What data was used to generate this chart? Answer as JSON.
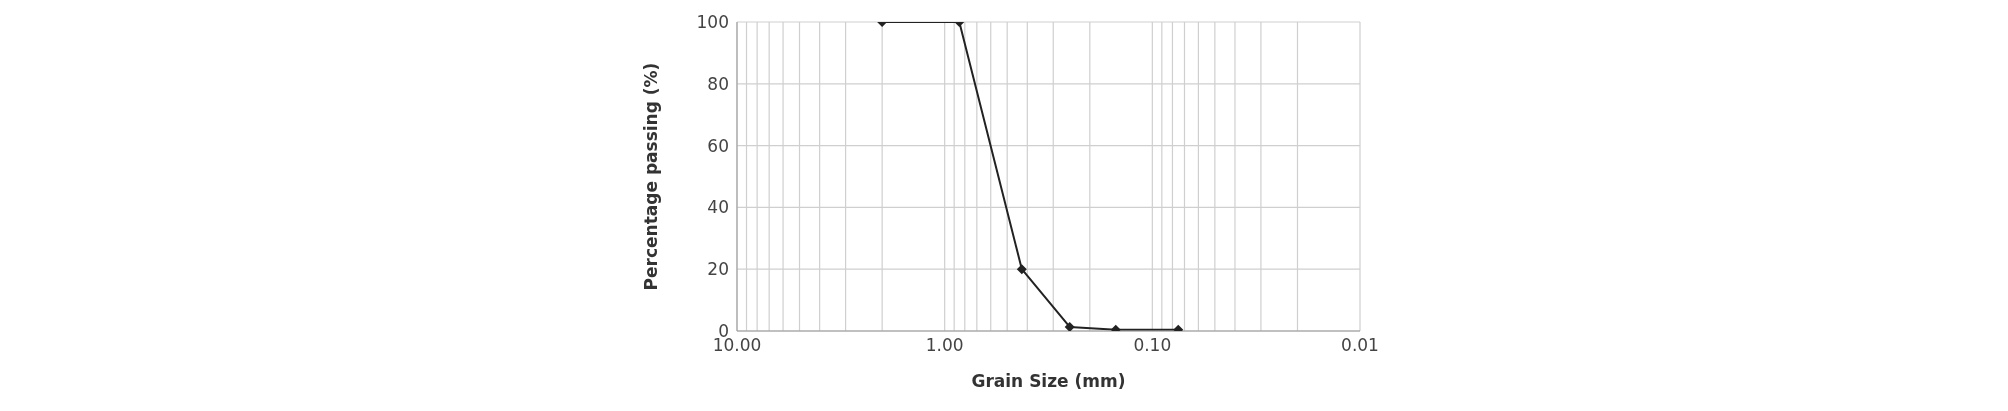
{
  "chart_data": {
    "type": "line",
    "xlabel": "Grain Size (mm)",
    "ylabel": "Percentage passing (%)",
    "x": [
      2.0,
      0.85,
      0.425,
      0.25,
      0.15,
      0.075
    ],
    "series": [
      {
        "color": "#222222",
        "values": [
          100,
          100,
          20,
          1.3,
          0.4,
          0.4
        ]
      }
    ],
    "log": "x",
    "xlim": [
      10,
      0.01
    ],
    "xticks": [
      {
        "value": 10,
        "label": "10.00"
      },
      {
        "value": 9,
        "label": null
      },
      {
        "value": 8,
        "label": null
      },
      {
        "value": 7,
        "label": null
      },
      {
        "value": 6,
        "label": null
      },
      {
        "value": 5,
        "label": null
      },
      {
        "value": 4,
        "label": null
      },
      {
        "value": 3,
        "label": null
      },
      {
        "value": 2,
        "label": null
      },
      {
        "value": 1,
        "label": "1.00"
      },
      {
        "value": 0.9,
        "label": null
      },
      {
        "value": 0.8,
        "label": null
      },
      {
        "value": 0.7,
        "label": null
      },
      {
        "value": 0.6,
        "label": null
      },
      {
        "value": 0.5,
        "label": null
      },
      {
        "value": 0.4,
        "label": null
      },
      {
        "value": 0.3,
        "label": null
      },
      {
        "value": 0.2,
        "label": null
      },
      {
        "value": 0.1,
        "label": "0.10"
      },
      {
        "value": 0.09,
        "label": null
      },
      {
        "value": 0.08,
        "label": null
      },
      {
        "value": 0.07,
        "label": null
      },
      {
        "value": 0.06,
        "label": null
      },
      {
        "value": 0.05,
        "label": null
      },
      {
        "value": 0.04,
        "label": null
      },
      {
        "value": 0.03,
        "label": null
      },
      {
        "value": 0.02,
        "label": null
      },
      {
        "value": 0.01,
        "label": "0.01"
      }
    ],
    "ylim": [
      0,
      100
    ],
    "yticks": [
      0,
      20,
      40,
      60,
      80,
      100
    ],
    "grid": true,
    "legend": false,
    "marker": "diamond",
    "line_style": "solid"
  }
}
